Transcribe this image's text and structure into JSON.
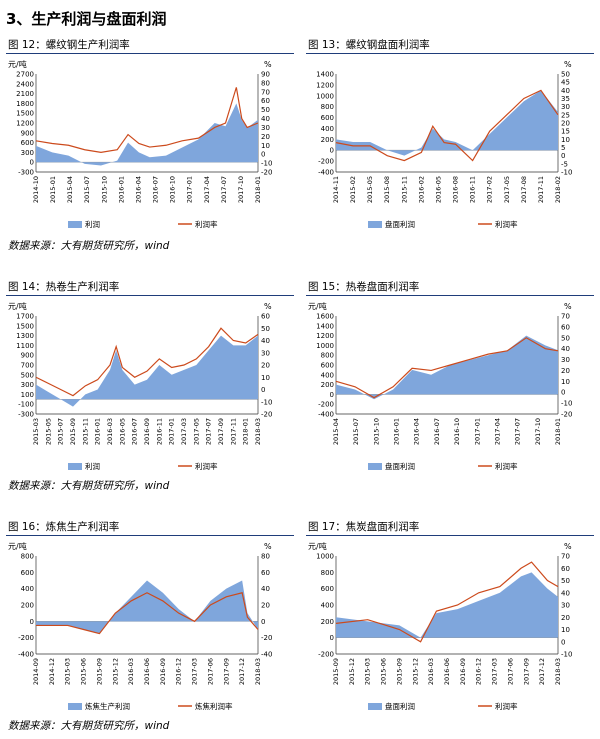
{
  "section_title": "3、生产利润与盘面利润",
  "sources": [
    "数据来源：大有期货研究所，wind",
    "数据来源：大有期货研究所，wind",
    "数据来源：大有期货研究所，wind"
  ],
  "colors": {
    "bar": "#7fa6dc",
    "line": "#cc4a1c",
    "rule": "#1f3d7a"
  },
  "panels": [
    {
      "title": "图 12：螺纹钢生产利润率",
      "left_unit": "元/吨",
      "right_unit": "%"
    },
    {
      "title": "图 13：螺纹钢盘面利润率",
      "left_unit": "",
      "right_unit": "%"
    },
    {
      "title": "图 14：热卷生产利润率",
      "left_unit": "元/吨",
      "right_unit": "%"
    },
    {
      "title": "图 15：热卷盘面利润率",
      "left_unit": "元/吨",
      "right_unit": "%"
    },
    {
      "title": "图 16：炼焦生产利润率",
      "left_unit": "元/吨",
      "right_unit": "%"
    },
    {
      "title": "图 17：焦炭盘面利润率",
      "left_unit": "元/吨",
      "right_unit": "%"
    }
  ],
  "chart_data": [
    {
      "type": "bar",
      "y_left": {
        "ticks": [
          -300,
          0,
          300,
          600,
          900,
          1200,
          1500,
          1800,
          2100,
          2400,
          2700
        ],
        "range": [
          -300,
          2700
        ]
      },
      "y_right": {
        "ticks": [
          -20,
          -10,
          0,
          10,
          20,
          30,
          40,
          50,
          60,
          70,
          80,
          90
        ],
        "range": [
          -20,
          90
        ]
      },
      "x_ticks": [
        "2014-10",
        "2015-01",
        "2015-04",
        "2015-07",
        "2015-10",
        "2016-01",
        "2016-04",
        "2016-07",
        "2016-10",
        "2017-01",
        "2017-04",
        "2017-07",
        "2017-10",
        "2018-01"
      ],
      "x_points": [
        "2014-10",
        "2015-01",
        "2015-04",
        "2015-07",
        "2015-10",
        "2016-01",
        "2016-03",
        "2016-05",
        "2016-07",
        "2016-10",
        "2017-01",
        "2017-04",
        "2017-07",
        "2017-09",
        "2017-11",
        "2017-12",
        "2018-01",
        "2018-03"
      ],
      "series": [
        {
          "name": "利润",
          "kind": "bar",
          "axis": "left",
          "values": [
            500,
            300,
            200,
            -50,
            -100,
            50,
            600,
            300,
            150,
            200,
            450,
            700,
            1200,
            1100,
            1800,
            1300,
            1050,
            1300
          ]
        },
        {
          "name": "利润率",
          "kind": "line",
          "axis": "right",
          "values": [
            15,
            12,
            10,
            5,
            2,
            5,
            22,
            12,
            8,
            10,
            15,
            18,
            30,
            35,
            75,
            40,
            30,
            35
          ]
        }
      ]
    },
    {
      "type": "bar",
      "y_left": {
        "ticks": [
          -400,
          -200,
          0,
          200,
          400,
          600,
          800,
          1000,
          1200,
          1400
        ],
        "range": [
          -400,
          1400
        ]
      },
      "y_right": {
        "ticks": [
          -10,
          -5,
          0,
          5,
          10,
          15,
          20,
          25,
          30,
          35,
          40,
          45,
          50
        ],
        "range": [
          -10,
          50
        ]
      },
      "x_ticks": [
        "2014-11",
        "2015-02",
        "2015-05",
        "2015-08",
        "2015-11",
        "2016-02",
        "2016-05",
        "2016-08",
        "2016-11",
        "2017-02",
        "2017-05",
        "2017-08",
        "2017-11",
        "2018-02"
      ],
      "x_points": [
        "2014-11",
        "2015-02",
        "2015-05",
        "2015-08",
        "2015-11",
        "2016-02",
        "2016-04",
        "2016-06",
        "2016-08",
        "2016-11",
        "2017-02",
        "2017-05",
        "2017-08",
        "2017-11",
        "2018-02"
      ],
      "series": [
        {
          "name": "盘面利润",
          "kind": "bar",
          "axis": "left",
          "values": [
            200,
            150,
            150,
            0,
            -100,
            50,
            400,
            200,
            150,
            0,
            300,
            600,
            900,
            1100,
            700
          ]
        },
        {
          "name": "利润率",
          "kind": "line",
          "axis": "right",
          "values": [
            8,
            6,
            6,
            0,
            -3,
            2,
            18,
            8,
            7,
            -3,
            15,
            25,
            35,
            40,
            25
          ]
        }
      ]
    },
    {
      "type": "bar",
      "y_left": {
        "ticks": [
          -300,
          -100,
          100,
          300,
          500,
          700,
          900,
          1100,
          1300,
          1500,
          1700
        ],
        "range": [
          -300,
          1700
        ]
      },
      "y_right": {
        "ticks": [
          -20,
          -10,
          0,
          10,
          20,
          30,
          40,
          50,
          60
        ],
        "range": [
          -20,
          60
        ]
      },
      "x_ticks": [
        "2015-03",
        "2015-05",
        "2015-07",
        "2015-09",
        "2015-11",
        "2016-01",
        "2016-03",
        "2016-05",
        "2016-07",
        "2016-09",
        "2016-11",
        "2017-01",
        "2017-03",
        "2017-05",
        "2017-07",
        "2017-09",
        "2017-11",
        "2018-01",
        "2018-03"
      ],
      "x_points": [
        "2015-03",
        "2015-05",
        "2015-07",
        "2015-09",
        "2015-11",
        "2016-01",
        "2016-03",
        "2016-04",
        "2016-05",
        "2016-07",
        "2016-09",
        "2016-11",
        "2017-01",
        "2017-03",
        "2017-05",
        "2017-07",
        "2017-09",
        "2017-11",
        "2018-01",
        "2018-03"
      ],
      "series": [
        {
          "name": "利润",
          "kind": "bar",
          "axis": "left",
          "values": [
            300,
            150,
            0,
            -150,
            100,
            200,
            600,
            1000,
            600,
            300,
            400,
            700,
            500,
            600,
            700,
            1000,
            1300,
            1100,
            1100,
            1300
          ]
        },
        {
          "name": "利润率",
          "kind": "line",
          "axis": "right",
          "values": [
            10,
            5,
            0,
            -5,
            3,
            8,
            20,
            35,
            18,
            10,
            15,
            25,
            18,
            20,
            25,
            35,
            50,
            40,
            38,
            45
          ]
        }
      ]
    },
    {
      "type": "bar",
      "y_left": {
        "ticks": [
          -400,
          -200,
          0,
          200,
          400,
          600,
          800,
          1000,
          1200,
          1400,
          1600
        ],
        "range": [
          -400,
          1600
        ]
      },
      "y_right": {
        "ticks": [
          -20,
          -10,
          0,
          10,
          20,
          30,
          40,
          50,
          60,
          70
        ],
        "range": [
          -20,
          70
        ]
      },
      "x_ticks": [
        "2015-04",
        "2015-07",
        "2015-10",
        "2016-01",
        "2016-04",
        "2016-07",
        "2016-10",
        "2017-01",
        "2017-04",
        "2017-07",
        "2017-10",
        "2018-01"
      ],
      "x_points": [
        "2015-04",
        "2015-07",
        "2015-10",
        "2016-01",
        "2016-04",
        "2016-07",
        "2016-10",
        "2017-01",
        "2017-04",
        "2017-07",
        "2017-10",
        "2018-01",
        "2018-03"
      ],
      "series": [
        {
          "name": "盘面利润",
          "kind": "bar",
          "axis": "left",
          "values": [
            200,
            100,
            -100,
            100,
            500,
            400,
            600,
            700,
            800,
            900,
            1200,
            1000,
            900
          ]
        },
        {
          "name": "利润率",
          "kind": "line",
          "axis": "right",
          "values": [
            10,
            5,
            -5,
            5,
            22,
            20,
            25,
            30,
            35,
            38,
            50,
            40,
            38
          ]
        }
      ]
    },
    {
      "type": "bar",
      "y_left": {
        "ticks": [
          -400,
          -200,
          0,
          200,
          400,
          600,
          800
        ],
        "range": [
          -400,
          800
        ]
      },
      "y_right": {
        "ticks": [
          -40,
          -20,
          0,
          20,
          40,
          60,
          80
        ],
        "range": [
          -40,
          80
        ]
      },
      "x_ticks": [
        "2014-09",
        "2014-12",
        "2015-03",
        "2015-06",
        "2015-09",
        "2015-12",
        "2016-03",
        "2016-06",
        "2016-09",
        "2016-12",
        "2017-03",
        "2017-06",
        "2017-09",
        "2017-12",
        "2018-03"
      ],
      "x_points": [
        "2014-09",
        "2015-03",
        "2015-06",
        "2015-09",
        "2015-12",
        "2016-03",
        "2016-06",
        "2016-09",
        "2016-12",
        "2017-03",
        "2017-06",
        "2017-09",
        "2017-12",
        "2018-01",
        "2018-03"
      ],
      "series": [
        {
          "name": "炼焦生产利润",
          "kind": "bar",
          "axis": "left",
          "values": [
            -50,
            -50,
            -100,
            -150,
            100,
            300,
            500,
            350,
            150,
            0,
            250,
            400,
            500,
            100,
            -100
          ]
        },
        {
          "name": "炼焦利润率",
          "kind": "line",
          "axis": "right",
          "values": [
            -5,
            -5,
            -10,
            -15,
            10,
            25,
            35,
            25,
            10,
            0,
            20,
            30,
            35,
            5,
            -10
          ]
        }
      ]
    },
    {
      "type": "bar",
      "y_left": {
        "ticks": [
          -200,
          0,
          200,
          400,
          600,
          800,
          1000
        ],
        "range": [
          -200,
          1000
        ]
      },
      "y_right": {
        "ticks": [
          -10,
          0,
          10,
          20,
          30,
          40,
          50,
          60,
          70
        ],
        "range": [
          -10,
          70
        ]
      },
      "x_ticks": [
        "2015-09",
        "2015-12",
        "2015-03",
        "2015-06",
        "2015-09",
        "2015-12",
        "2016-03",
        "2016-06",
        "2016-09",
        "2016-12",
        "2017-03",
        "2017-06",
        "2017-09",
        "2017-12",
        "2018-03"
      ],
      "x_points": [
        "2014-09",
        "2015-03",
        "2015-09",
        "2016-01",
        "2016-04",
        "2016-08",
        "2016-12",
        "2017-04",
        "2017-08",
        "2017-10",
        "2018-01",
        "2018-03"
      ],
      "series": [
        {
          "name": "盘面利润",
          "kind": "bar",
          "axis": "left",
          "values": [
            250,
            200,
            150,
            0,
            300,
            350,
            450,
            550,
            750,
            800,
            600,
            500
          ]
        },
        {
          "name": "利润率",
          "kind": "line",
          "axis": "right",
          "values": [
            15,
            18,
            10,
            0,
            25,
            30,
            40,
            45,
            60,
            65,
            50,
            45
          ]
        }
      ]
    }
  ]
}
